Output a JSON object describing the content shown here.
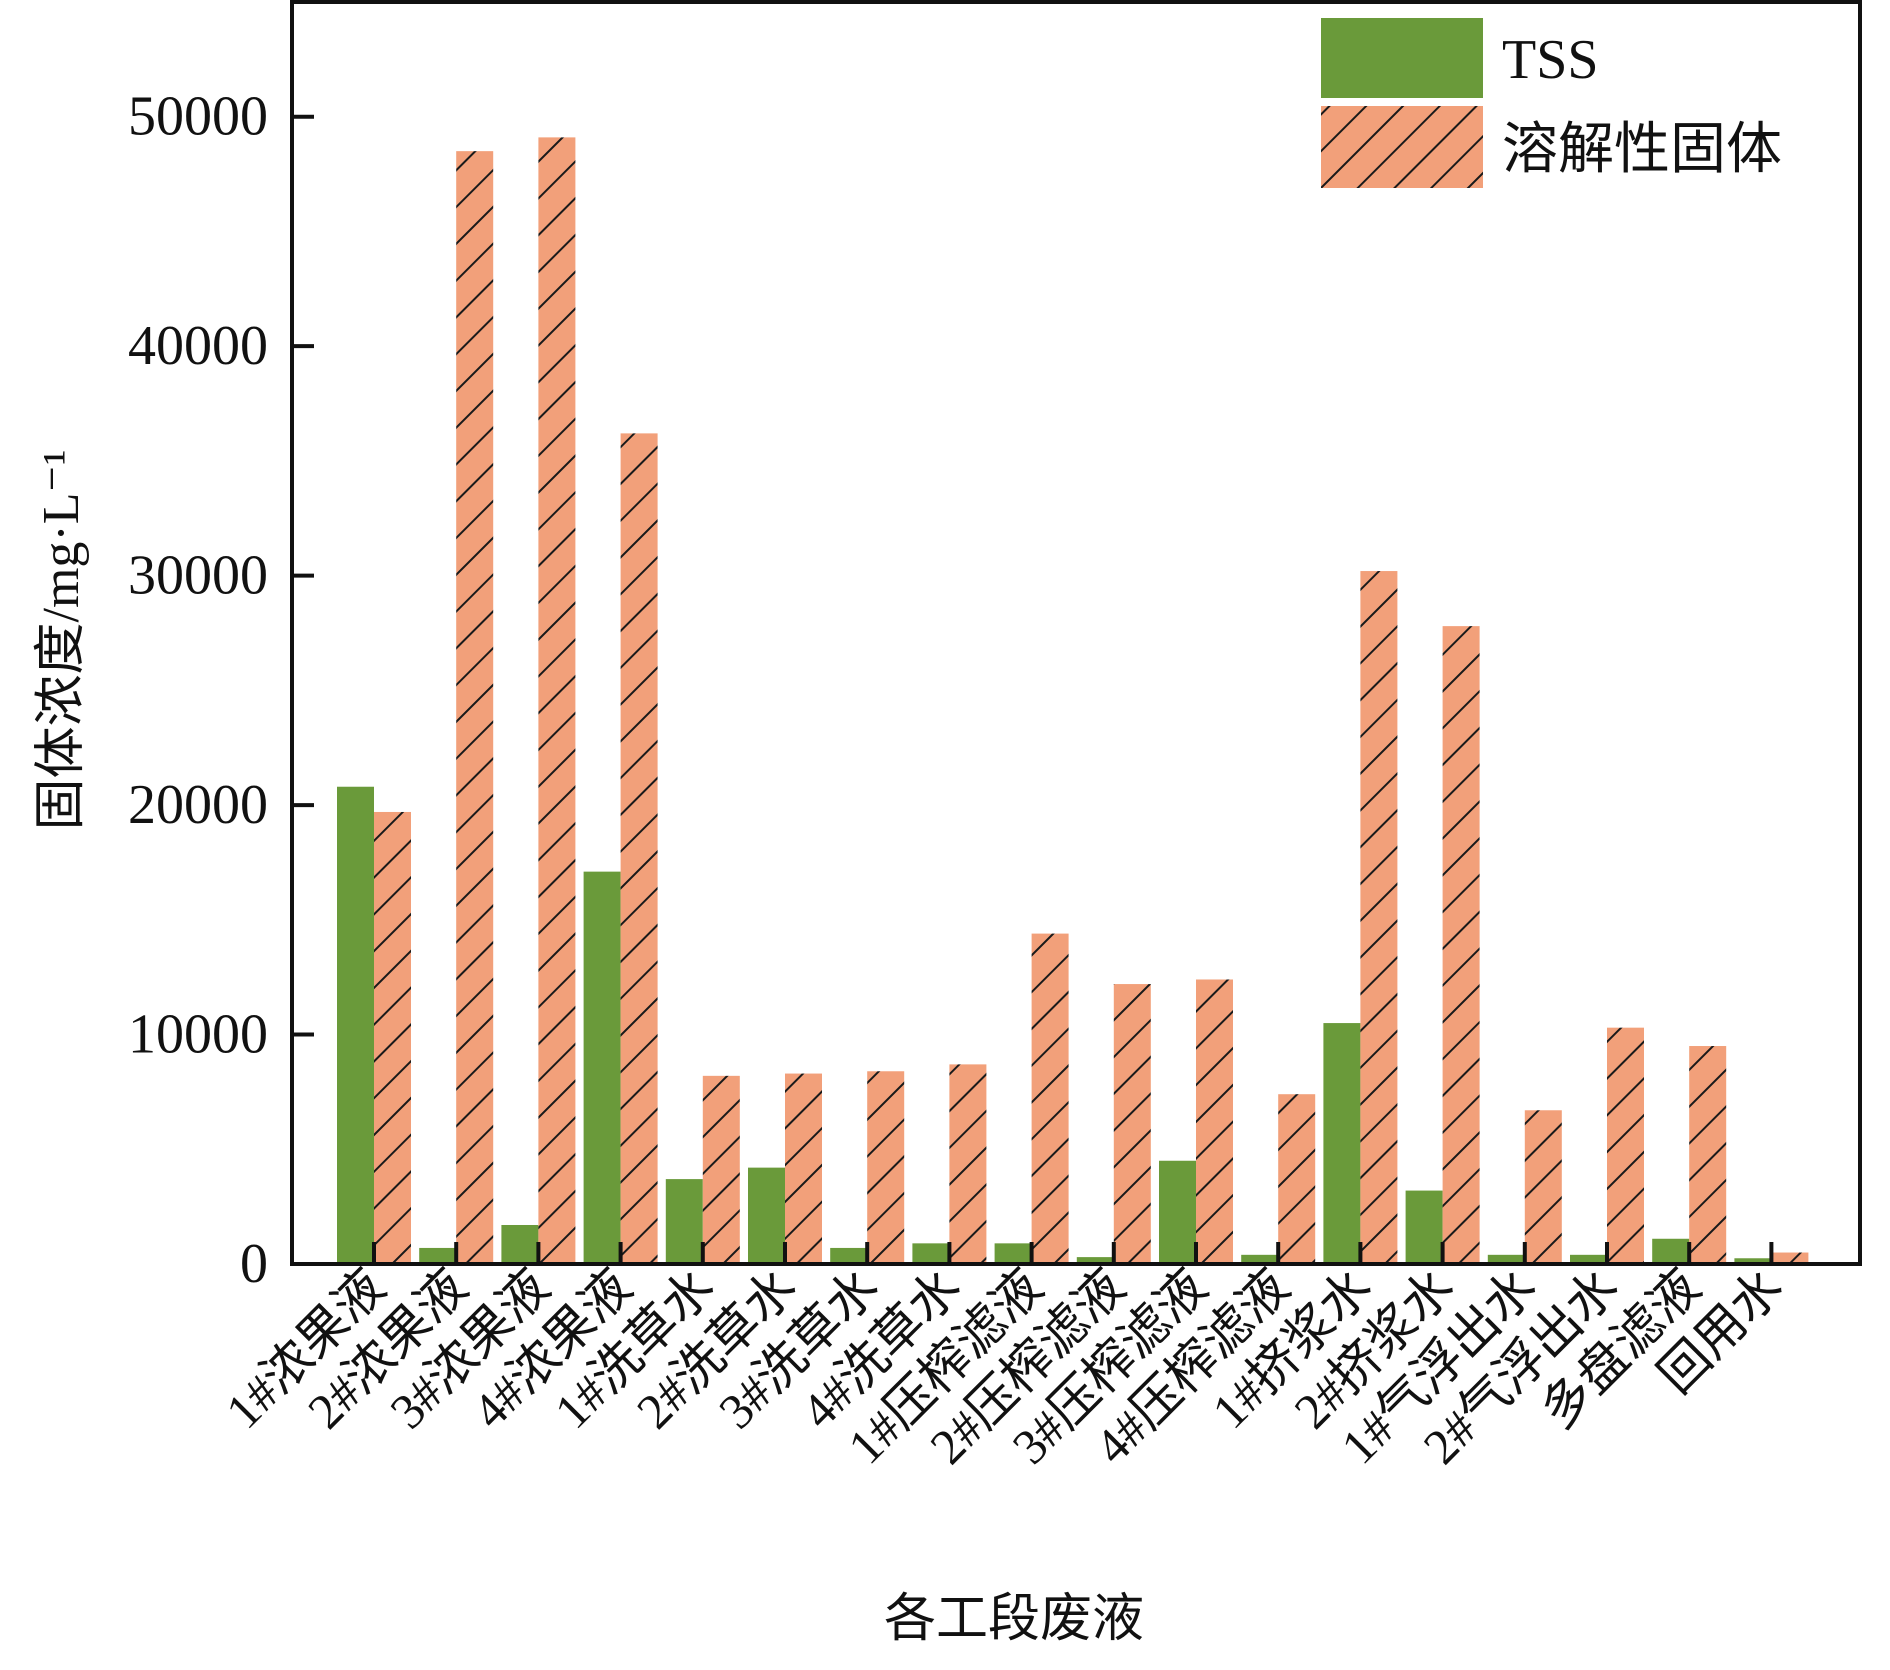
{
  "chart_data": {
    "type": "bar",
    "xlabel": "各工段废液",
    "ylabel": "固体浓度/mg·L⁻¹",
    "ylim": [
      0,
      55000
    ],
    "yticks": [
      0,
      10000,
      20000,
      30000,
      40000,
      50000
    ],
    "ytick_labels": [
      "0",
      "10000",
      "20000",
      "30000",
      "40000",
      "50000"
    ],
    "grid": false,
    "legend_position": "top-right",
    "categories": [
      "1#浓果液",
      "2#浓果液",
      "3#浓果液",
      "4#浓果液",
      "1#洗草水",
      "2#洗草水",
      "3#洗草水",
      "4#洗草水",
      "1#压榨滤液",
      "2#压榨滤液",
      "3#压榨滤液",
      "4#压榨滤液",
      "1#挤浆水",
      "2#挤浆水",
      "1#气浮出水",
      "2#气浮出水",
      "多盘滤液",
      "回用水"
    ],
    "series": [
      {
        "name": "TSS",
        "color": "#6a9a3a",
        "pattern": "solid",
        "values": [
          20800,
          700,
          1700,
          17100,
          3700,
          4200,
          700,
          900,
          900,
          300,
          4500,
          400,
          10500,
          3200,
          400,
          400,
          1100,
          250
        ]
      },
      {
        "name": "溶解性固体",
        "color": "#f2a07a",
        "pattern": "diagonal-hatch",
        "values": [
          19700,
          48500,
          49100,
          36200,
          8200,
          8300,
          8400,
          8700,
          14400,
          12200,
          12400,
          7400,
          30200,
          27800,
          6700,
          10300,
          9500,
          500
        ]
      }
    ]
  }
}
